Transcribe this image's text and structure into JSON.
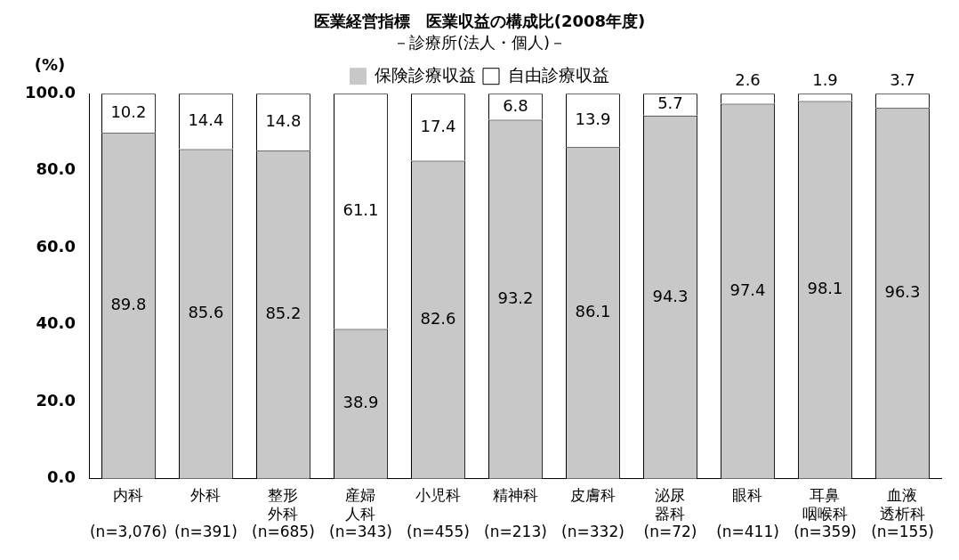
{
  "chart_data": {
    "type": "bar",
    "title": "医業経営指標　医業収益の構成比(2008年度)",
    "subtitle": "－診療所(法人・個人)－",
    "ylabel": "(%)",
    "categories": [
      "内科\n(n=3,076)",
      "外科\n(n=391)",
      "整形外科\n(n=685)",
      "産婦人科\n(n=343)",
      "小児科\n(n=455)",
      "精神科\n(n=213)",
      "皮膚科\n(n=332)",
      "泌尿器科\n(n=72)",
      "眼科\n(n=411)",
      "耳鼻咽喉科\n(n=359)",
      "血液透析科\n(n=155)"
    ],
    "series": [
      {
        "name": "保険診療収益",
        "color": "#c8c8c8",
        "values": [
          89.8,
          85.6,
          85.2,
          38.9,
          82.6,
          93.2,
          86.1,
          94.3,
          97.4,
          98.1,
          96.3
        ]
      },
      {
        "name": "自由診療収益",
        "color": "#ffffff",
        "values": [
          10.2,
          14.4,
          14.8,
          61.1,
          17.4,
          6.8,
          13.9,
          5.7,
          2.6,
          1.9,
          3.7
        ]
      }
    ],
    "stacked": true,
    "data_labels": true,
    "legend": "top",
    "grid": false,
    "ylim": [
      0,
      100
    ],
    "yticks": [
      {
        "value": 0,
        "label": "0.0"
      },
      {
        "value": 20,
        "label": "20.0"
      },
      {
        "value": 40,
        "label": "40.0"
      },
      {
        "value": 60,
        "label": "60.0"
      },
      {
        "value": 80,
        "label": "80.0"
      },
      {
        "value": 100,
        "label": "100.0"
      }
    ]
  }
}
